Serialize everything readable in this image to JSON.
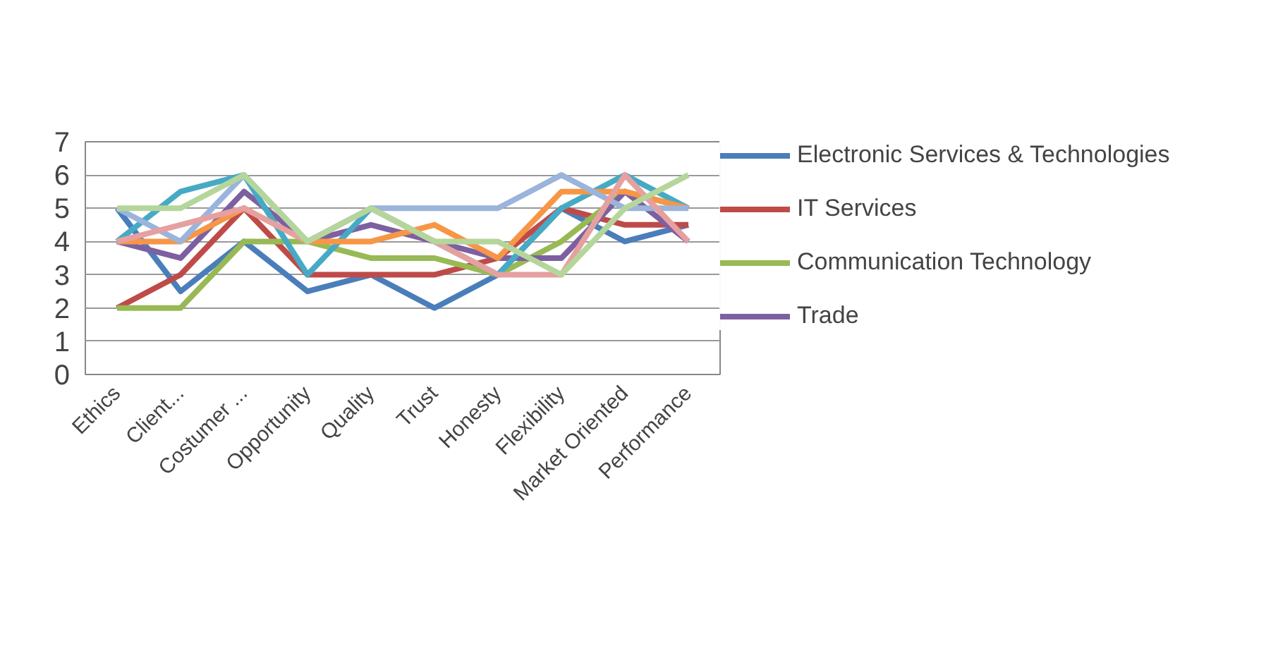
{
  "chart_data": {
    "type": "line",
    "categories": [
      "Ethics",
      "Client...",
      "Costumer ...",
      "Opportunity",
      "Quality",
      "Trust",
      "Honesty",
      "Flexibility",
      "Market Oriented",
      "Performance"
    ],
    "series": [
      {
        "name": "Electronic Services & Technologies",
        "color": "#4a7ebb",
        "values": [
          5,
          2.5,
          4,
          2.5,
          3,
          2,
          3,
          5,
          4,
          4.5
        ]
      },
      {
        "name": "IT Services",
        "color": "#be4b48",
        "values": [
          2,
          3,
          5,
          3,
          3,
          3,
          3.5,
          5,
          4.5,
          4.5
        ]
      },
      {
        "name": "Communication Technology",
        "color": "#98b954",
        "values": [
          2,
          2,
          4,
          4,
          3.5,
          3.5,
          3,
          4,
          5.5,
          5
        ]
      },
      {
        "name": "Trade",
        "color": "#7d60a0",
        "values": [
          4,
          3.5,
          5.5,
          4,
          4.5,
          4,
          3.5,
          3.5,
          5.5,
          4
        ]
      },
      {
        "color": "#46aac5",
        "values": [
          4,
          5.5,
          6,
          3,
          5,
          4,
          3,
          5,
          6,
          5
        ]
      },
      {
        "color": "#f79646",
        "values": [
          4,
          4,
          5,
          4,
          4,
          4.5,
          3.5,
          5.5,
          5.5,
          5
        ]
      },
      {
        "color": "#9bb4dc",
        "values": [
          5,
          4,
          6,
          4,
          5,
          5,
          5,
          6,
          5,
          5
        ]
      },
      {
        "color": "#e6a0a0",
        "values": [
          4,
          4.5,
          5,
          4,
          5,
          4,
          3,
          3,
          6,
          4
        ]
      },
      {
        "color": "#b5d69b",
        "values": [
          5,
          5,
          6,
          4,
          5,
          4,
          4,
          3,
          5,
          6
        ]
      }
    ],
    "ylim": [
      0,
      7
    ],
    "yticks": [
      0,
      1,
      2,
      3,
      4,
      5,
      6,
      7
    ],
    "grid": "y",
    "legend": "right",
    "marker": "none",
    "line_style": "solid"
  }
}
